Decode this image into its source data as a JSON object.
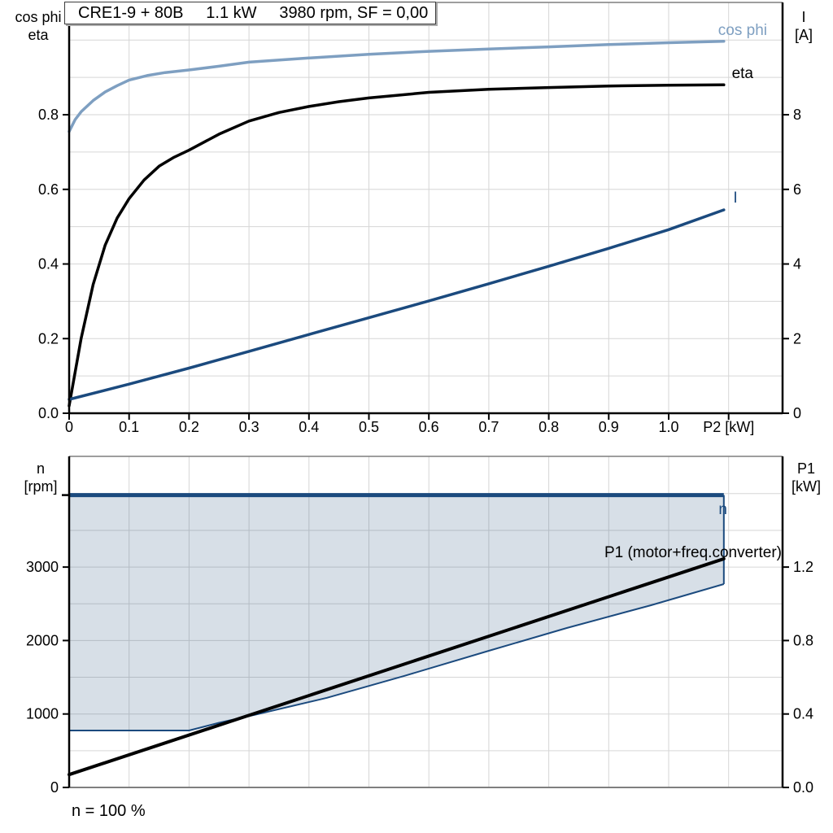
{
  "colors": {
    "dark_blue": "#1b4a7e",
    "light_blue": "#7e9fc1",
    "black": "#000000",
    "grid": "#d6d6d6",
    "frame_gray": "#7f7f7f",
    "fill": "rgba(31,78,121,0.18)"
  },
  "chart1": {
    "title": "CRE1-9 + 80B     1.1 kW     3980 rpm, SF = 0,00",
    "left_axis_label": [
      "cos phi",
      "eta"
    ],
    "right_axis_label": [
      "I",
      "[A]"
    ],
    "x_axis_label": "P2 [kW]",
    "x_tick_labels": [
      "0",
      "0.1",
      "0.2",
      "0.3",
      "0.4",
      "0.5",
      "0.6",
      "0.7",
      "0.8",
      "0.9",
      "1.0"
    ],
    "y_left_tick_labels": [
      "0.0",
      "0.2",
      "0.4",
      "0.6",
      "0.8"
    ],
    "y_right_tick_labels": [
      "0",
      "2",
      "4",
      "6",
      "8"
    ],
    "curve_labels": {
      "cos_phi": "cos phi",
      "eta": "eta",
      "current": "I"
    }
  },
  "chart2": {
    "left_axis_label": [
      "n",
      "[rpm]"
    ],
    "right_axis_label": [
      "P1",
      "[kW]"
    ],
    "y_left_tick_labels": [
      "0",
      "1000",
      "2000",
      "3000"
    ],
    "y_right_tick_labels": [
      "0.0",
      "0.4",
      "0.8",
      "1.2"
    ],
    "curve_labels": {
      "n": "n",
      "p1": "P1 (motor+freq.converter)"
    },
    "footer": "n = 100 %"
  },
  "chart_data": [
    {
      "type": "line",
      "title": "CRE1-9 + 80B 1.1 kW 3980 rpm, SF = 0,00",
      "xlabel": "P2 [kW]",
      "x_range": [
        0,
        1.19
      ],
      "y_left": {
        "label": "cos phi / eta",
        "range": [
          0,
          1.09
        ]
      },
      "y_right": {
        "label": "I [A]",
        "range": [
          0,
          10.9
        ]
      },
      "grid": {
        "x_step": 0.1,
        "y_left_step": 0.1
      },
      "legend_position": "inline-labels",
      "series": [
        {
          "name": "cos phi",
          "axis": "left",
          "color": "light_blue",
          "width": 3.5,
          "points": [
            [
              0,
              0.755
            ],
            [
              0.01,
              0.787
            ],
            [
              0.02,
              0.808
            ],
            [
              0.04,
              0.838
            ],
            [
              0.06,
              0.861
            ],
            [
              0.08,
              0.878
            ],
            [
              0.1,
              0.893
            ],
            [
              0.13,
              0.905
            ],
            [
              0.16,
              0.913
            ],
            [
              0.2,
              0.92
            ],
            [
              0.25,
              0.93
            ],
            [
              0.3,
              0.941
            ],
            [
              0.4,
              0.952
            ],
            [
              0.5,
              0.962
            ],
            [
              0.6,
              0.97
            ],
            [
              0.7,
              0.976
            ],
            [
              0.8,
              0.982
            ],
            [
              0.9,
              0.988
            ],
            [
              1.0,
              0.993
            ],
            [
              1.092,
              0.997
            ]
          ]
        },
        {
          "name": "eta",
          "axis": "left",
          "color": "black",
          "width": 3.5,
          "points": [
            [
              0,
              0.02
            ],
            [
              0.02,
              0.2
            ],
            [
              0.04,
              0.345
            ],
            [
              0.06,
              0.45
            ],
            [
              0.08,
              0.523
            ],
            [
              0.1,
              0.575
            ],
            [
              0.125,
              0.625
            ],
            [
              0.15,
              0.662
            ],
            [
              0.175,
              0.686
            ],
            [
              0.2,
              0.705
            ],
            [
              0.25,
              0.748
            ],
            [
              0.3,
              0.783
            ],
            [
              0.35,
              0.806
            ],
            [
              0.4,
              0.822
            ],
            [
              0.45,
              0.835
            ],
            [
              0.5,
              0.845
            ],
            [
              0.6,
              0.86
            ],
            [
              0.7,
              0.868
            ],
            [
              0.8,
              0.873
            ],
            [
              0.9,
              0.877
            ],
            [
              1.0,
              0.879
            ],
            [
              1.092,
              0.88
            ]
          ]
        },
        {
          "name": "I",
          "axis": "right",
          "color": "dark_blue",
          "width": 3.5,
          "points": [
            [
              0,
              0.37
            ],
            [
              0.1,
              0.78
            ],
            [
              0.2,
              1.21
            ],
            [
              0.3,
              1.66
            ],
            [
              0.4,
              2.11
            ],
            [
              0.5,
              2.56
            ],
            [
              0.6,
              3.01
            ],
            [
              0.7,
              3.47
            ],
            [
              0.8,
              3.94
            ],
            [
              0.9,
              4.42
            ],
            [
              1.0,
              4.92
            ],
            [
              1.092,
              5.45
            ]
          ]
        }
      ]
    },
    {
      "type": "line",
      "xlabel": "shared with top chart (unlabeled)",
      "x_range": [
        0,
        1.19
      ],
      "y_left": {
        "label": "n [rpm]",
        "range": [
          0,
          4510
        ]
      },
      "y_right": {
        "label": "P1 [kW]",
        "range": [
          0,
          1.8
        ]
      },
      "grid": {
        "x_step": 0.1,
        "y_left_step": 500
      },
      "annotation": "n = 100 %",
      "series": [
        {
          "name": "n",
          "axis": "left",
          "color": "dark_blue",
          "width": 5,
          "points": [
            [
              0,
              3980
            ],
            [
              1.092,
              3980
            ]
          ]
        },
        {
          "name": "n-lower-boundary",
          "axis": "left",
          "color": "dark_blue",
          "width": 2,
          "points": [
            [
              0,
              775
            ],
            [
              0.2,
              775
            ],
            [
              0.25,
              880
            ],
            [
              0.31,
              990
            ],
            [
              0.43,
              1220
            ],
            [
              0.56,
              1520
            ],
            [
              0.7,
              1860
            ],
            [
              0.83,
              2170
            ],
            [
              0.97,
              2480
            ],
            [
              1.092,
              2768
            ]
          ]
        },
        {
          "name": "P1 (motor+freq.converter)",
          "axis": "right",
          "color": "black",
          "width": 4,
          "points": [
            [
              0,
              0.07
            ],
            [
              1.092,
              1.245
            ]
          ]
        }
      ],
      "area": {
        "between": [
          "n",
          "n-lower-boundary"
        ],
        "color": "fill"
      }
    }
  ]
}
